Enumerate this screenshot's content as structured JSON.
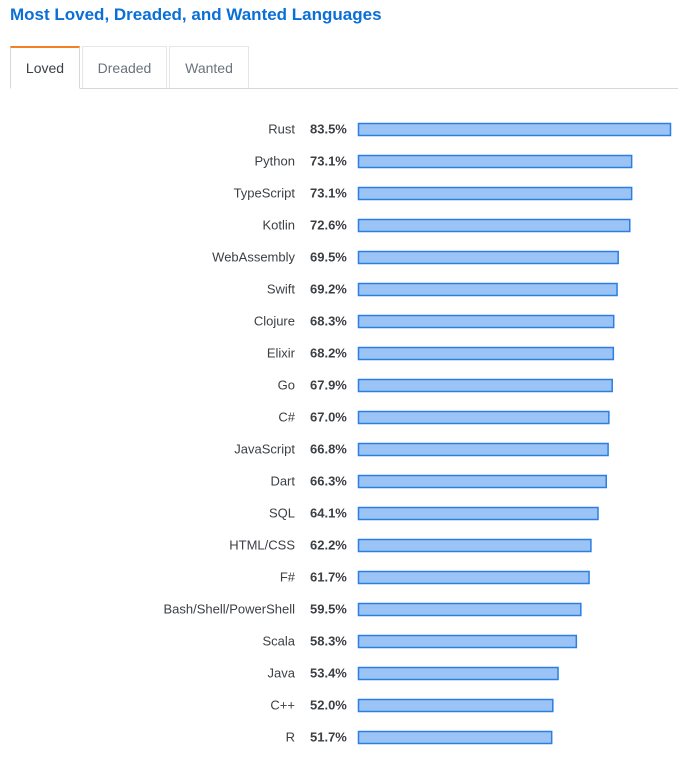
{
  "header": {
    "title": "Most Loved, Dreaded, and Wanted Languages"
  },
  "tabs": [
    {
      "label": "Loved",
      "active": true
    },
    {
      "label": "Dreaded",
      "active": false
    },
    {
      "label": "Wanted",
      "active": false
    }
  ],
  "colors": {
    "bar_fill": "#9cc3f5",
    "bar_stroke": "#2a7fe0",
    "title": "#0a6fd6",
    "tab_accent": "#f48024"
  },
  "chart_data": {
    "type": "bar",
    "orientation": "horizontal",
    "categories": [
      "Rust",
      "Python",
      "TypeScript",
      "Kotlin",
      "WebAssembly",
      "Swift",
      "Clojure",
      "Elixir",
      "Go",
      "C#",
      "JavaScript",
      "Dart",
      "SQL",
      "HTML/CSS",
      "F#",
      "Bash/Shell/PowerShell",
      "Scala",
      "Java",
      "C++",
      "R"
    ],
    "values": [
      83.5,
      73.1,
      73.1,
      72.6,
      69.5,
      69.2,
      68.3,
      68.2,
      67.9,
      67.0,
      66.8,
      66.3,
      64.1,
      62.2,
      61.7,
      59.5,
      58.3,
      53.4,
      52.0,
      51.7
    ],
    "value_labels": [
      "83.5%",
      "73.1%",
      "73.1%",
      "72.6%",
      "69.5%",
      "69.2%",
      "68.3%",
      "68.2%",
      "67.9%",
      "67.0%",
      "66.8%",
      "66.3%",
      "64.1%",
      "62.2%",
      "61.7%",
      "59.5%",
      "58.3%",
      "53.4%",
      "52.0%",
      "51.7%"
    ],
    "title": "Most Loved, Dreaded, and Wanted Languages",
    "xlabel": "",
    "ylabel": "",
    "grid": false
  }
}
